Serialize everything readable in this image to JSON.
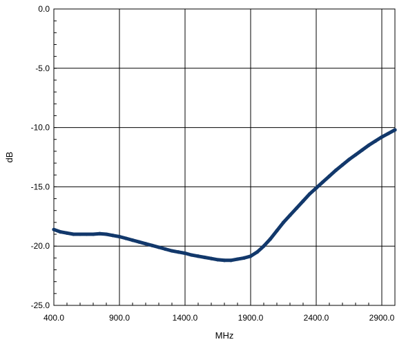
{
  "chart_data": {
    "type": "line",
    "title": "",
    "xlabel": "MHz",
    "ylabel": "dB",
    "xlim": [
      400,
      3000
    ],
    "ylim": [
      -25,
      0
    ],
    "x_ticks": [
      400,
      900,
      1400,
      1900,
      2400,
      2900
    ],
    "x_tick_labels": [
      "400.0",
      "900.0",
      "1400.0",
      "1900.0",
      "2400.0",
      "2900.0"
    ],
    "y_ticks": [
      0,
      -5,
      -10,
      -15,
      -20,
      -25
    ],
    "y_tick_labels": [
      "0.0",
      "-5.0",
      "-10.0",
      "-15.0",
      "-20.0",
      "-25.0"
    ],
    "grid": true,
    "legend": "none",
    "series": [
      {
        "color": "#12386b",
        "x": [
          400,
          450,
          500,
          550,
          600,
          650,
          700,
          750,
          800,
          850,
          900,
          950,
          1000,
          1050,
          1100,
          1150,
          1200,
          1250,
          1300,
          1350,
          1400,
          1450,
          1500,
          1550,
          1600,
          1650,
          1700,
          1750,
          1800,
          1850,
          1900,
          1950,
          2000,
          2050,
          2100,
          2150,
          2200,
          2250,
          2300,
          2350,
          2400,
          2450,
          2500,
          2550,
          2600,
          2650,
          2700,
          2750,
          2800,
          2850,
          2900,
          2950,
          3000
        ],
        "values": [
          -18.6,
          -18.8,
          -18.9,
          -19.0,
          -19.0,
          -19.0,
          -19.0,
          -18.95,
          -19.0,
          -19.1,
          -19.2,
          -19.35,
          -19.5,
          -19.65,
          -19.8,
          -19.95,
          -20.1,
          -20.25,
          -20.4,
          -20.5,
          -20.6,
          -20.75,
          -20.85,
          -20.95,
          -21.05,
          -21.15,
          -21.2,
          -21.2,
          -21.1,
          -21.0,
          -20.85,
          -20.5,
          -20.0,
          -19.4,
          -18.7,
          -18.0,
          -17.4,
          -16.8,
          -16.2,
          -15.6,
          -15.1,
          -14.6,
          -14.1,
          -13.6,
          -13.15,
          -12.7,
          -12.3,
          -11.9,
          -11.5,
          -11.15,
          -10.8,
          -10.5,
          -10.2
        ]
      }
    ]
  }
}
